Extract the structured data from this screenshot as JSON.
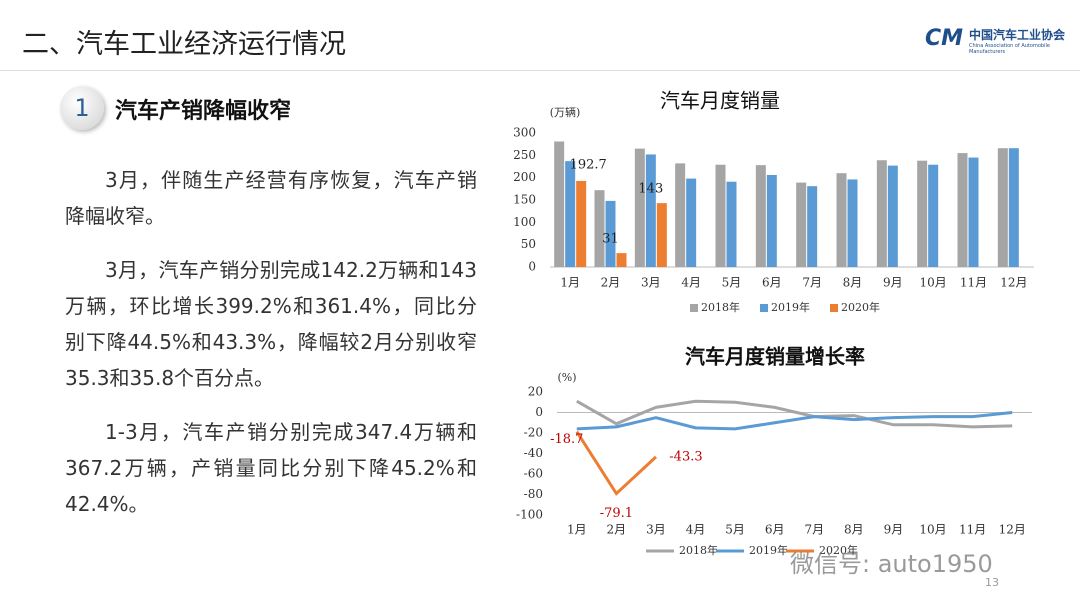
{
  "slide_title": "二、汽车工业经济运行情况",
  "logo": {
    "name": "中国汽车工业协会",
    "english": "China Association of Automobile Manufacturers"
  },
  "section": {
    "number": "1",
    "heading": "汽车产销降幅收窄"
  },
  "paragraphs": [
    "3月，伴随生产经营有序恢复，汽车产销降幅收窄。",
    "3月，汽车产销分别完成142.2万辆和143万辆，环比增长399.2%和361.4%，同比分别下降44.5%和43.3%，降幅较2月分别收窄35.3和35.8个百分点。",
    "1-3月，汽车产销分别完成347.4万辆和367.2万辆，产销量同比分别下降45.2%和42.4%。"
  ],
  "watermark": "微信号: auto1950",
  "page_number": "13",
  "chart_data": [
    {
      "type": "bar",
      "title": "汽车月度销量",
      "y_label": "(万辆)",
      "categories": [
        "1月",
        "2月",
        "3月",
        "4月",
        "5月",
        "6月",
        "7月",
        "8月",
        "9月",
        "10月",
        "11月",
        "12月"
      ],
      "series": [
        {
          "name": "2018年",
          "color": "#a5a5a5",
          "values": [
            281,
            172,
            265,
            232,
            229,
            228,
            189,
            210,
            239,
            238,
            255,
            266
          ]
        },
        {
          "name": "2019年",
          "color": "#5b9bd5",
          "values": [
            237,
            148,
            252,
            198,
            191,
            206,
            181,
            196,
            227,
            229,
            245,
            266
          ]
        },
        {
          "name": "2020年",
          "color": "#ed7d31",
          "values": [
            192.7,
            31,
            143,
            null,
            null,
            null,
            null,
            null,
            null,
            null,
            null,
            null
          ]
        }
      ],
      "ylim": [
        0,
        300
      ],
      "yticks": [
        0,
        50,
        100,
        150,
        200,
        250,
        300
      ],
      "data_labels_series": 2
    },
    {
      "type": "line",
      "title": "汽车月度销量增长率",
      "y_label": "(%)",
      "categories": [
        "1月",
        "2月",
        "3月",
        "4月",
        "5月",
        "6月",
        "7月",
        "8月",
        "9月",
        "10月",
        "11月",
        "12月"
      ],
      "series": [
        {
          "name": "2018年",
          "color": "#a5a5a5",
          "values": [
            11,
            -11,
            5,
            11,
            10,
            5,
            -4,
            -3,
            -12,
            -12,
            -14,
            -13
          ]
        },
        {
          "name": "2019年",
          "color": "#5b9bd5",
          "values": [
            -16,
            -14,
            -5,
            -15,
            -16,
            -10,
            -4,
            -7,
            -5,
            -4,
            -4,
            0
          ]
        },
        {
          "name": "2020年",
          "color": "#ed7d31",
          "values": [
            -18.7,
            -79.1,
            -43.3,
            null,
            null,
            null,
            null,
            null,
            null,
            null,
            null,
            null
          ]
        }
      ],
      "ylim": [
        -100,
        20
      ],
      "yticks": [
        -100,
        -80,
        -60,
        -40,
        -20,
        0,
        20
      ],
      "data_labels_series": 2
    }
  ]
}
